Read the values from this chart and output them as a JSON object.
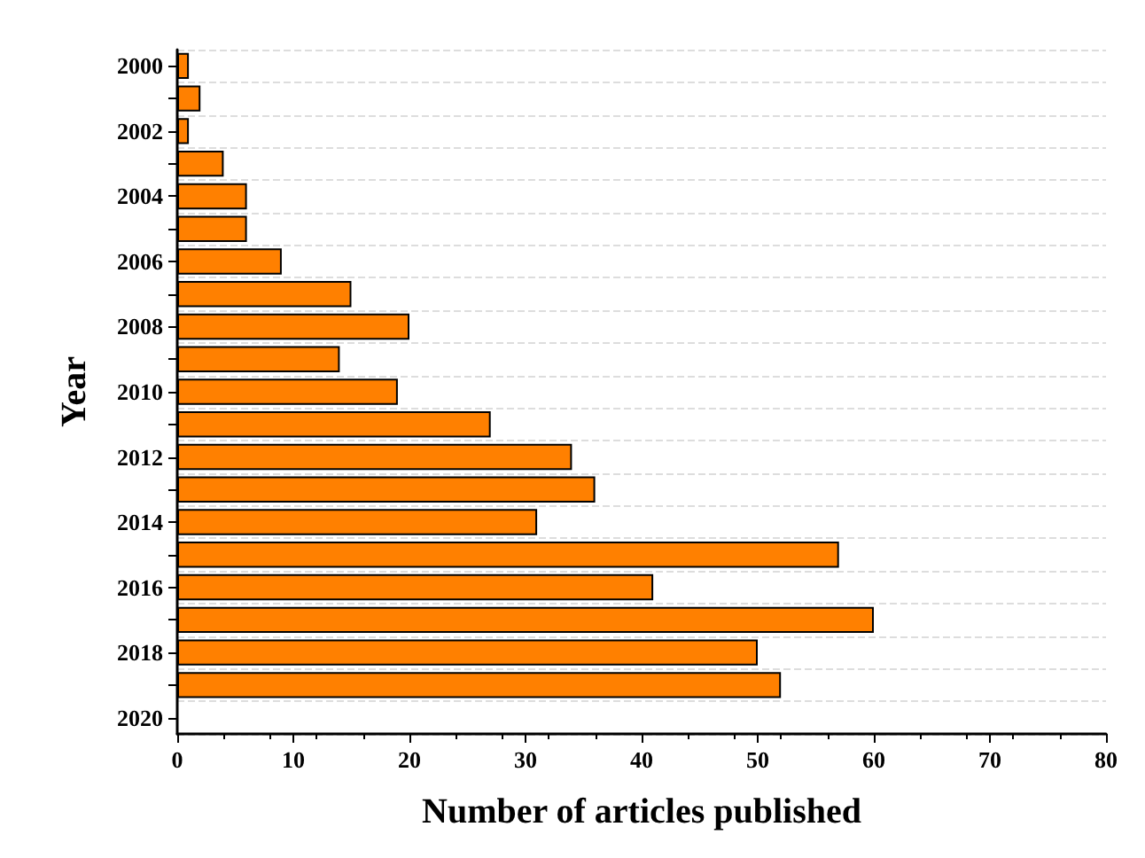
{
  "chart_data": {
    "type": "bar",
    "orientation": "horizontal",
    "xlabel": "Number of articles published",
    "ylabel": "Year",
    "categories": [
      "2000",
      null,
      "2002",
      null,
      "2004",
      null,
      "2006",
      null,
      "2008",
      null,
      "2010",
      null,
      "2012",
      null,
      "2014",
      null,
      "2016",
      null,
      "2018",
      null,
      "2020"
    ],
    "values": [
      1,
      2,
      1,
      4,
      6,
      6,
      9,
      15,
      20,
      14,
      19,
      27,
      34,
      36,
      31,
      57,
      41,
      60,
      50,
      52,
      null
    ],
    "color": "#ff8000",
    "xlim": [
      0,
      80
    ],
    "xticks": [
      0,
      10,
      20,
      30,
      40,
      50,
      60,
      70,
      80
    ],
    "grid": "y"
  }
}
